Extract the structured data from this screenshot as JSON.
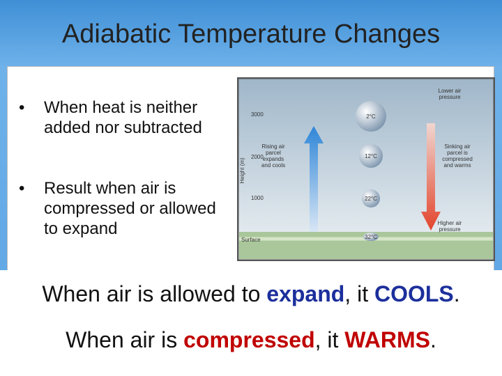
{
  "title": "Adiabatic Temperature Changes",
  "bullets": [
    "When heat is neither added nor subtracted",
    "Result when air is compressed or allowed to expand"
  ],
  "diagram": {
    "y_axis_label": "Height (m)",
    "heights": [
      "3000",
      "2000",
      "1000",
      "Surface"
    ],
    "parcel_temps": [
      "2°C",
      "12°C",
      "22°C",
      "32°C"
    ],
    "top_label": [
      "Lower air",
      "pressure"
    ],
    "bottom_label": [
      "Higher air",
      "pressure"
    ],
    "rising_label": [
      "Rising air",
      "parcel",
      "expands",
      "and cools"
    ],
    "sinking_label": [
      "Sinking air",
      "parcel is",
      "compressed",
      "and warms"
    ]
  },
  "statements": [
    {
      "parts": [
        "When air is allowed to ",
        "expand",
        ", it ",
        "COOLS",
        "."
      ]
    },
    {
      "parts": [
        "When air is ",
        "compressed",
        ", it ",
        "WARMS",
        "."
      ]
    }
  ]
}
